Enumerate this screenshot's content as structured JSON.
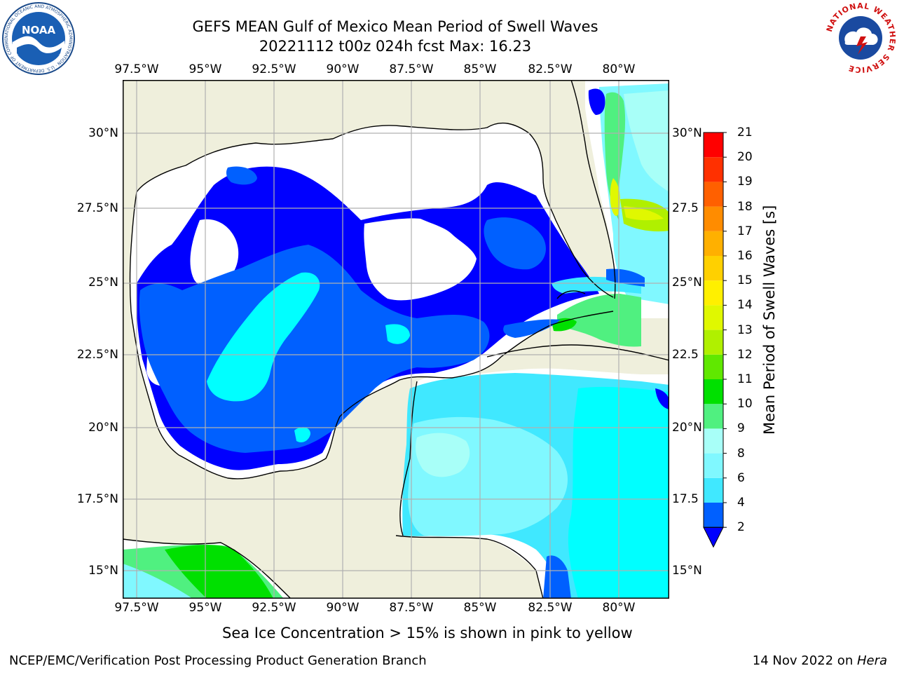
{
  "title": {
    "line1": "GEFS MEAN Gulf of Mexico Mean Period of Swell Waves",
    "line2": "20221112 t00z 024h fcst   Max: 16.23"
  },
  "map": {
    "lon_labels": [
      "97.5°W",
      "95°W",
      "92.5°W",
      "90°W",
      "87.5°W",
      "85°W",
      "82.5°W",
      "80°W"
    ],
    "lat_labels_left": [
      "30°N",
      "27.5°N",
      "25°N",
      "22.5°N",
      "20°N",
      "17.5°N",
      "15°N"
    ],
    "lat_labels_right": [
      "30°N",
      "27.5",
      "25°N",
      "22.5",
      "20°N",
      "17.5",
      "15°N"
    ],
    "colors": {
      "land": "#efefdc",
      "no_data": "#ffffff",
      "coast": "#000000",
      "grid": "#b0b0b0"
    }
  },
  "colorbar": {
    "title": "Mean Period of Swell Waves [s]",
    "labels": [
      "2",
      "4",
      "6",
      "8",
      "9",
      "10",
      "11",
      "12",
      "13",
      "14",
      "15",
      "16",
      "17",
      "18",
      "19",
      "20",
      "21"
    ],
    "colors": [
      "#0060ff",
      "#00c8ff",
      "#40e8ff",
      "#80f8ff",
      "#a8fff8",
      "#50f080",
      "#00e000",
      "#60e800",
      "#b0f000",
      "#e0f800",
      "#fff000",
      "#ffd000",
      "#ffb000",
      "#ff8c00",
      "#ff6000",
      "#ff3000",
      "#ff0000"
    ],
    "under_color": "#0000ff"
  },
  "note": "Sea Ice Concentration > 15% is shown in pink to yellow",
  "footer": {
    "left": "NCEP/EMC/Verification Post Processing Product Generation Branch",
    "date": "14 Nov 2022 on ",
    "machine": "Hera"
  },
  "logos": {
    "noaa_text": "NOAA",
    "noaa_ring": "NATIONAL OCEANIC AND ATMOSPHERIC ADMINISTRATION · U.S. DEPARTMENT OF COMMERCE",
    "nws_ring": "NATIONAL WEATHER SERVICE"
  }
}
